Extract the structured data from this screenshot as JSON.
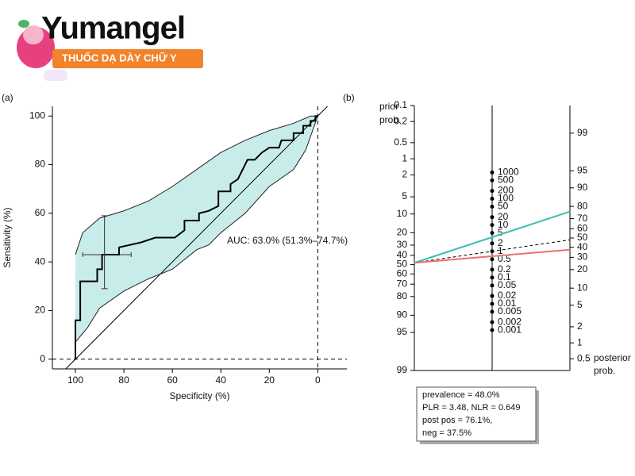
{
  "logo": {
    "name": "Yumangel",
    "tagline": "THUỐC DẠ DÀY CHỮ Y"
  },
  "chart_data": [
    {
      "type": "roc",
      "panel_label": "(a)",
      "x_label": "Specificity (%)",
      "y_label": "Sensitivity (%)",
      "annotation": "AUC: 63.0% (51.3%–74.7%)",
      "xlim": [
        109.5,
        -12
      ],
      "ylim": [
        -4,
        104
      ],
      "xticks": [
        100,
        80,
        60,
        40,
        20,
        0
      ],
      "yticks": [
        0,
        20,
        40,
        60,
        80,
        100
      ],
      "vlines": [
        0
      ],
      "hlines": [
        0
      ],
      "diagonal": true,
      "band": true,
      "band_color": "#c8ece9",
      "series": [
        {
          "color": "#000000",
          "x": [
            100,
            100,
            98,
            98,
            91,
            91,
            89,
            89,
            82,
            82,
            73,
            67,
            59,
            55,
            55,
            49,
            49,
            45,
            41,
            41,
            36,
            36,
            33,
            30,
            29,
            26,
            23,
            20,
            16,
            15,
            10,
            10,
            6,
            6,
            3,
            3,
            1,
            1,
            0
          ],
          "values": [
            0,
            16,
            16,
            32,
            32,
            37,
            37,
            43,
            43,
            46,
            48,
            50,
            50,
            53,
            57,
            57,
            60,
            61,
            63,
            69,
            69,
            72,
            74,
            80,
            82,
            82,
            85,
            87,
            87,
            90,
            90,
            93,
            93,
            96,
            96,
            98,
            98,
            100,
            100
          ]
        },
        {
          "color": "#222222",
          "x": [
            100,
            97,
            90,
            80,
            70,
            60,
            50,
            40,
            30,
            20,
            10,
            3,
            0
          ],
          "values": [
            43,
            52,
            58,
            61,
            65,
            71,
            78,
            85,
            90,
            94,
            97,
            100,
            100
          ]
        },
        {
          "color": "#222222",
          "x": [
            100,
            95,
            90,
            80,
            70,
            60,
            50,
            45,
            40,
            30,
            20,
            10,
            5,
            0
          ],
          "values": [
            7,
            13,
            21,
            28,
            33,
            37,
            45,
            47,
            52,
            60,
            71,
            78,
            86,
            100
          ]
        }
      ],
      "crosshair": {
        "x": 88,
        "y": 43,
        "x_range": [
          97,
          77
        ],
        "y_range": [
          29,
          59
        ]
      }
    },
    {
      "type": "nomogram",
      "panel_label": "(b)",
      "left_title": [
        "prior",
        "prob."
      ],
      "right_title": [
        "posterior",
        "prob."
      ],
      "prior_lim": [
        0.1,
        99
      ],
      "posterior_lim": [
        99.7,
        0.3
      ],
      "prior_ticks": [
        0.1,
        0.2,
        0.5,
        1,
        2,
        5,
        10,
        20,
        30,
        40,
        50,
        60,
        70,
        80,
        90,
        95,
        99
      ],
      "posterior_ticks": [
        99,
        95,
        90,
        80,
        70,
        60,
        50,
        40,
        30,
        20,
        10,
        5,
        2,
        1,
        0.5
      ],
      "lr_ticks": [
        1000,
        500,
        200,
        100,
        50,
        20,
        10,
        5,
        2,
        1,
        0.5,
        0.2,
        0.1,
        0.05,
        0.02,
        0.01,
        0.005,
        0.002,
        0.001
      ],
      "prior": 48,
      "lines": [
        {
          "lr": 3.48,
          "posterior": 76.1,
          "color": "#3cbfae",
          "dashed": false
        },
        {
          "lr": 1,
          "posterior": 48,
          "color": "#000000",
          "dashed": true
        },
        {
          "lr": 0.649,
          "posterior": 37.5,
          "color": "#e8736b",
          "dashed": false
        }
      ],
      "info_box": [
        "prevalence = 48.0%",
        "PLR = 3.48, NLR = 0.649",
        "post pos = 76.1%,",
        "neg = 37.5%"
      ]
    }
  ]
}
